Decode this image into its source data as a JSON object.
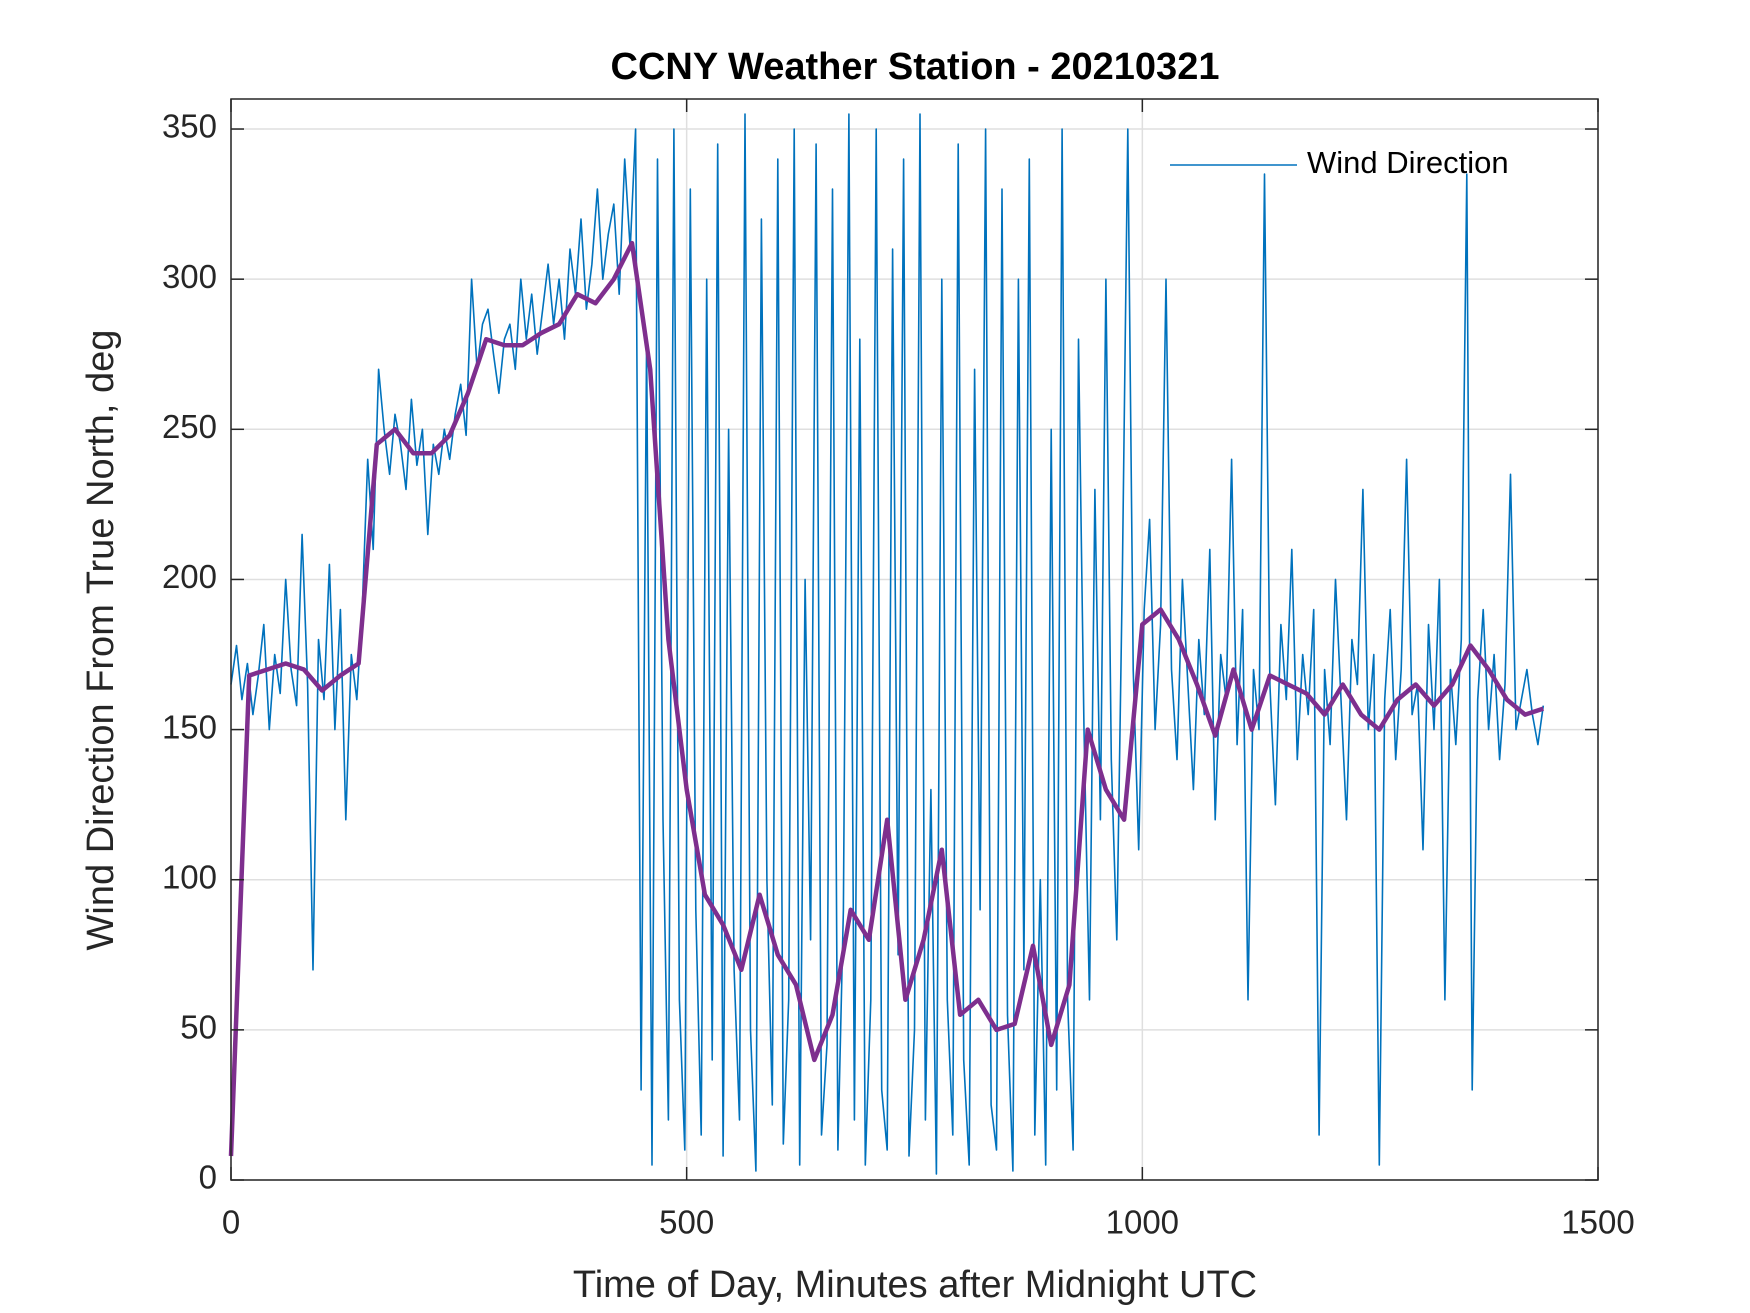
{
  "chart_data": {
    "type": "line",
    "title": "CCNY Weather Station - 20210321",
    "xlabel": "Time of Day, Minutes after Midnight UTC",
    "ylabel": "Wind Direction From True North, deg",
    "xlim": [
      0,
      1500
    ],
    "xticks": [
      0,
      500,
      1000,
      1500
    ],
    "ylim": [
      0,
      360
    ],
    "yticks": [
      0,
      50,
      100,
      150,
      200,
      250,
      300,
      350
    ],
    "grid": true,
    "legend": "upper right",
    "series": [
      {
        "name": "Wind Direction",
        "color": "#0072BD",
        "x": [
          0,
          6,
          12,
          18,
          24,
          30,
          36,
          42,
          48,
          54,
          60,
          66,
          72,
          78,
          84,
          90,
          96,
          102,
          108,
          114,
          120,
          126,
          132,
          138,
          144,
          150,
          156,
          162,
          168,
          174,
          180,
          186,
          192,
          198,
          204,
          210,
          216,
          222,
          228,
          234,
          240,
          246,
          252,
          258,
          264,
          270,
          276,
          282,
          288,
          294,
          300,
          306,
          312,
          318,
          324,
          330,
          336,
          342,
          348,
          354,
          360,
          366,
          372,
          378,
          384,
          390,
          396,
          402,
          408,
          414,
          420,
          426,
          432,
          438,
          444,
          450,
          456,
          462,
          468,
          474,
          480,
          486,
          492,
          498,
          504,
          510,
          516,
          522,
          528,
          534,
          540,
          546,
          552,
          558,
          564,
          570,
          576,
          582,
          588,
          594,
          600,
          606,
          612,
          618,
          624,
          630,
          636,
          642,
          648,
          654,
          660,
          666,
          672,
          678,
          684,
          690,
          696,
          702,
          708,
          714,
          720,
          726,
          732,
          738,
          744,
          750,
          756,
          762,
          768,
          774,
          780,
          786,
          792,
          798,
          804,
          810,
          816,
          822,
          828,
          834,
          840,
          846,
          852,
          858,
          864,
          870,
          876,
          882,
          888,
          894,
          900,
          906,
          912,
          918,
          924,
          930,
          936,
          942,
          948,
          954,
          960,
          966,
          972,
          978,
          984,
          990,
          996,
          1002,
          1008,
          1014,
          1020,
          1026,
          1032,
          1038,
          1044,
          1050,
          1056,
          1062,
          1068,
          1074,
          1080,
          1086,
          1092,
          1098,
          1104,
          1110,
          1116,
          1122,
          1128,
          1134,
          1140,
          1146,
          1152,
          1158,
          1164,
          1170,
          1176,
          1182,
          1188,
          1194,
          1200,
          1206,
          1212,
          1218,
          1224,
          1230,
          1236,
          1242,
          1248,
          1254,
          1260,
          1266,
          1272,
          1278,
          1284,
          1290,
          1296,
          1302,
          1308,
          1314,
          1320,
          1326,
          1332,
          1338,
          1344,
          1350,
          1356,
          1362,
          1368,
          1374,
          1380,
          1386,
          1392,
          1398,
          1404,
          1410,
          1416,
          1422,
          1428,
          1434,
          1440
        ],
        "values": [
          165,
          178,
          160,
          172,
          155,
          168,
          185,
          150,
          175,
          162,
          200,
          170,
          158,
          215,
          165,
          70,
          180,
          160,
          205,
          150,
          190,
          120,
          175,
          160,
          190,
          240,
          210,
          270,
          250,
          235,
          255,
          245,
          230,
          260,
          238,
          250,
          215,
          245,
          235,
          250,
          240,
          255,
          265,
          248,
          300,
          270,
          285,
          290,
          275,
          262,
          280,
          285,
          270,
          300,
          280,
          295,
          275,
          290,
          305,
          285,
          300,
          280,
          310,
          295,
          320,
          290,
          305,
          330,
          300,
          315,
          325,
          295,
          340,
          310,
          350,
          30,
          280,
          5,
          340,
          120,
          20,
          350,
          60,
          10,
          330,
          90,
          15,
          300,
          40,
          345,
          8,
          250,
          70,
          20,
          355,
          50,
          3,
          320,
          100,
          25,
          340,
          12,
          60,
          350,
          5,
          200,
          80,
          345,
          15,
          45,
          330,
          10,
          90,
          355,
          20,
          280,
          5,
          60,
          350,
          30,
          10,
          310,
          75,
          340,
          8,
          50,
          355,
          20,
          130,
          2,
          300,
          60,
          15,
          345,
          40,
          5,
          270,
          90,
          350,
          25,
          10,
          330,
          55,
          3,
          300,
          70,
          340,
          15,
          100,
          5,
          250,
          30,
          350,
          60,
          10,
          280,
          150,
          60,
          230,
          120,
          300,
          140,
          80,
          200,
          350,
          170,
          110,
          190,
          220,
          150,
          185,
          300,
          170,
          140,
          200,
          165,
          130,
          180,
          155,
          210,
          120,
          175,
          160,
          240,
          145,
          190,
          60,
          170,
          150,
          335,
          165,
          125,
          185,
          160,
          210,
          140,
          175,
          155,
          190,
          15,
          170,
          145,
          200,
          160,
          120,
          180,
          165,
          230,
          150,
          175,
          5,
          160,
          190,
          140,
          170,
          240,
          155,
          165,
          110,
          185,
          150,
          200,
          60,
          170,
          145,
          180,
          335,
          30,
          160,
          190,
          150,
          175,
          140,
          165,
          235,
          150,
          160,
          170,
          155,
          145,
          158
        ]
      },
      {
        "color": "#7E2F8E",
        "x": [
          0,
          20,
          40,
          60,
          80,
          100,
          120,
          140,
          160,
          180,
          200,
          220,
          240,
          260,
          280,
          300,
          320,
          340,
          360,
          380,
          400,
          420,
          440,
          460,
          480,
          500,
          520,
          540,
          560,
          580,
          600,
          620,
          640,
          660,
          680,
          700,
          720,
          740,
          760,
          780,
          800,
          820,
          840,
          860,
          880,
          900,
          920,
          940,
          960,
          980,
          1000,
          1020,
          1040,
          1060,
          1080,
          1100,
          1120,
          1140,
          1160,
          1180,
          1200,
          1220,
          1240,
          1260,
          1280,
          1300,
          1320,
          1340,
          1360,
          1380,
          1400,
          1420,
          1440
        ],
        "values": [
          8,
          168,
          170,
          172,
          170,
          163,
          168,
          172,
          245,
          250,
          242,
          242,
          248,
          262,
          280,
          278,
          278,
          282,
          285,
          295,
          292,
          300,
          312,
          270,
          180,
          130,
          95,
          85,
          70,
          95,
          75,
          65,
          40,
          55,
          90,
          80,
          120,
          60,
          80,
          110,
          55,
          60,
          50,
          52,
          78,
          45,
          65,
          150,
          130,
          120,
          185,
          190,
          180,
          165,
          148,
          170,
          150,
          168,
          165,
          162,
          155,
          165,
          155,
          150,
          160,
          165,
          158,
          165,
          178,
          170,
          160,
          155,
          157
        ]
      }
    ]
  }
}
